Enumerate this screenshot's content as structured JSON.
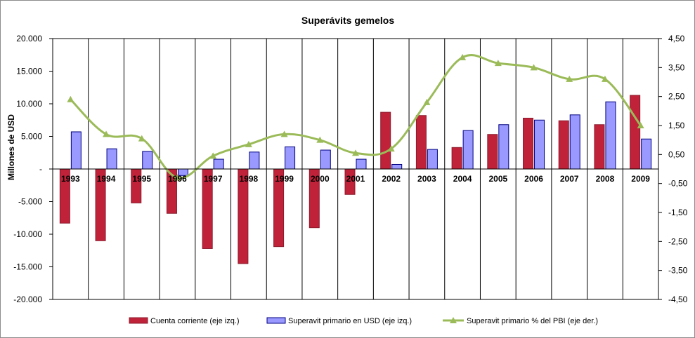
{
  "chart_data": {
    "type": "bar",
    "title": "Superávits gemelos",
    "xlabel": "",
    "ylabel": "Millones de USD",
    "categories": [
      "1993",
      "1994",
      "1995",
      "1996",
      "1997",
      "1998",
      "1999",
      "2000",
      "2001",
      "2002",
      "2003",
      "2004",
      "2005",
      "2006",
      "2007",
      "2008",
      "2009"
    ],
    "ylim": [
      -20000,
      20000
    ],
    "y2lim": [
      -4.5,
      4.5
    ],
    "y_ticks": [
      "20.000",
      "15.000",
      "10.000",
      "5.000",
      "-",
      "-5.000",
      "-10.000",
      "-15.000",
      "-20.000"
    ],
    "y_tick_values": [
      20000,
      15000,
      10000,
      5000,
      0,
      -5000,
      -10000,
      -15000,
      -20000
    ],
    "y2_ticks": [
      "4,50",
      "3,50",
      "2,50",
      "1,50",
      "0,50",
      "-0,50",
      "-1,50",
      "-2,50",
      "-3,50",
      "-4,50"
    ],
    "y2_tick_values": [
      4.5,
      3.5,
      2.5,
      1.5,
      0.5,
      -0.5,
      -1.5,
      -2.5,
      -3.5,
      -4.5
    ],
    "series": [
      {
        "name": "Cuenta corriente (eje izq.)",
        "kind": "bar",
        "axis": "left",
        "color": "#c0223a",
        "values": [
          -8300,
          -11000,
          -5200,
          -6800,
          -12200,
          -14500,
          -11900,
          -9000,
          -3900,
          8700,
          8200,
          3300,
          5300,
          7800,
          7400,
          6800,
          11300
        ]
      },
      {
        "name": "Superavit primario en USD (eje izq.)",
        "kind": "bar",
        "axis": "left",
        "color": "#9999ff",
        "values": [
          5700,
          3100,
          2700,
          -1000,
          1500,
          2600,
          3400,
          2900,
          1500,
          700,
          3000,
          5900,
          6800,
          7500,
          8300,
          10300,
          4600
        ]
      },
      {
        "name": "Superavit primario % del PBI (eje der.)",
        "kind": "line",
        "axis": "right",
        "color": "#9bbb59",
        "values": [
          2.4,
          1.2,
          1.05,
          -0.3,
          0.45,
          0.85,
          1.2,
          1.0,
          0.55,
          0.7,
          2.3,
          3.85,
          3.65,
          3.5,
          3.1,
          3.1,
          1.5
        ]
      }
    ]
  }
}
